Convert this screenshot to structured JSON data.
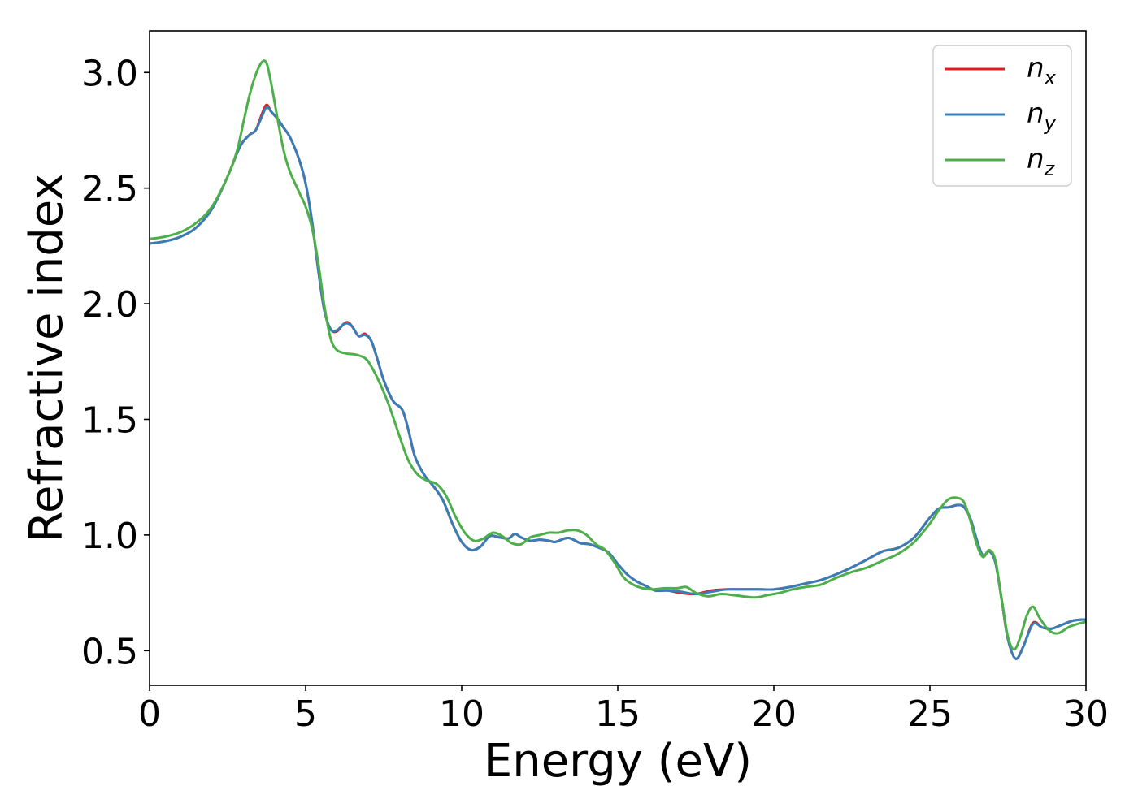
{
  "chart_data": {
    "type": "line",
    "xlabel": "Energy (eV)",
    "ylabel": "Refractive index",
    "xlim": [
      0,
      30
    ],
    "ylim": [
      0.35,
      3.18
    ],
    "x_ticks": [
      0,
      5,
      10,
      15,
      20,
      25,
      30
    ],
    "x_tick_labels": [
      "0",
      "5",
      "10",
      "15",
      "20",
      "25",
      "30"
    ],
    "y_ticks": [
      0.5,
      1.0,
      1.5,
      2.0,
      2.5,
      3.0
    ],
    "y_tick_labels": [
      "0.5",
      "1.0",
      "1.5",
      "2.0",
      "2.5",
      "3.0"
    ],
    "grid": false,
    "legend_position": "top-right",
    "series": [
      {
        "name": "n",
        "subscript": "x",
        "color": "#e41a1c",
        "points": [
          [
            0,
            2.26
          ],
          [
            0.5,
            2.27
          ],
          [
            1,
            2.29
          ],
          [
            1.5,
            2.33
          ],
          [
            2,
            2.41
          ],
          [
            2.5,
            2.55
          ],
          [
            2.9,
            2.68
          ],
          [
            3.2,
            2.73
          ],
          [
            3.4,
            2.75
          ],
          [
            3.6,
            2.82
          ],
          [
            3.75,
            2.86
          ],
          [
            3.9,
            2.83
          ],
          [
            4.1,
            2.8
          ],
          [
            4.3,
            2.76
          ],
          [
            4.5,
            2.72
          ],
          [
            4.8,
            2.62
          ],
          [
            5.0,
            2.52
          ],
          [
            5.2,
            2.36
          ],
          [
            5.4,
            2.15
          ],
          [
            5.6,
            1.97
          ],
          [
            5.8,
            1.89
          ],
          [
            6.0,
            1.88
          ],
          [
            6.2,
            1.91
          ],
          [
            6.35,
            1.92
          ],
          [
            6.5,
            1.9
          ],
          [
            6.7,
            1.86
          ],
          [
            6.9,
            1.87
          ],
          [
            7.1,
            1.84
          ],
          [
            7.3,
            1.76
          ],
          [
            7.5,
            1.67
          ],
          [
            7.8,
            1.58
          ],
          [
            8.1,
            1.54
          ],
          [
            8.3,
            1.45
          ],
          [
            8.5,
            1.34
          ],
          [
            8.8,
            1.26
          ],
          [
            9.1,
            1.21
          ],
          [
            9.4,
            1.15
          ],
          [
            9.7,
            1.05
          ],
          [
            10.0,
            0.97
          ],
          [
            10.3,
            0.935
          ],
          [
            10.6,
            0.95
          ],
          [
            10.9,
            0.995
          ],
          [
            11.2,
            0.99
          ],
          [
            11.5,
            0.985
          ],
          [
            11.7,
            1.005
          ],
          [
            11.9,
            0.99
          ],
          [
            12.2,
            0.975
          ],
          [
            12.5,
            0.98
          ],
          [
            12.8,
            0.975
          ],
          [
            13.0,
            0.97
          ],
          [
            13.3,
            0.985
          ],
          [
            13.5,
            0.985
          ],
          [
            13.8,
            0.965
          ],
          [
            14.1,
            0.96
          ],
          [
            14.4,
            0.945
          ],
          [
            14.7,
            0.925
          ],
          [
            15.0,
            0.875
          ],
          [
            15.3,
            0.83
          ],
          [
            15.6,
            0.8
          ],
          [
            15.9,
            0.78
          ],
          [
            16.2,
            0.76
          ],
          [
            16.6,
            0.76
          ],
          [
            17.0,
            0.75
          ],
          [
            17.5,
            0.745
          ],
          [
            18.0,
            0.76
          ],
          [
            18.5,
            0.765
          ],
          [
            19.0,
            0.765
          ],
          [
            19.5,
            0.765
          ],
          [
            20.0,
            0.765
          ],
          [
            20.5,
            0.775
          ],
          [
            21.0,
            0.79
          ],
          [
            21.5,
            0.805
          ],
          [
            22.0,
            0.83
          ],
          [
            22.5,
            0.86
          ],
          [
            23.0,
            0.895
          ],
          [
            23.5,
            0.93
          ],
          [
            24.0,
            0.945
          ],
          [
            24.5,
            0.99
          ],
          [
            25.0,
            1.075
          ],
          [
            25.3,
            1.115
          ],
          [
            25.6,
            1.12
          ],
          [
            25.9,
            1.13
          ],
          [
            26.1,
            1.12
          ],
          [
            26.3,
            1.07
          ],
          [
            26.5,
            0.98
          ],
          [
            26.7,
            0.91
          ],
          [
            26.9,
            0.93
          ],
          [
            27.1,
            0.88
          ],
          [
            27.3,
            0.72
          ],
          [
            27.5,
            0.55
          ],
          [
            27.75,
            0.465
          ],
          [
            28.0,
            0.52
          ],
          [
            28.3,
            0.62
          ],
          [
            28.6,
            0.6
          ],
          [
            28.9,
            0.595
          ],
          [
            29.2,
            0.61
          ],
          [
            29.6,
            0.63
          ],
          [
            30.0,
            0.635
          ]
        ]
      },
      {
        "name": "n",
        "subscript": "y",
        "color": "#377eb8",
        "points": [
          [
            0,
            2.26
          ],
          [
            0.5,
            2.27
          ],
          [
            1,
            2.29
          ],
          [
            1.5,
            2.33
          ],
          [
            2,
            2.41
          ],
          [
            2.5,
            2.55
          ],
          [
            2.9,
            2.68
          ],
          [
            3.2,
            2.73
          ],
          [
            3.4,
            2.75
          ],
          [
            3.6,
            2.81
          ],
          [
            3.75,
            2.85
          ],
          [
            3.9,
            2.83
          ],
          [
            4.1,
            2.8
          ],
          [
            4.3,
            2.76
          ],
          [
            4.5,
            2.72
          ],
          [
            4.8,
            2.62
          ],
          [
            5.0,
            2.52
          ],
          [
            5.2,
            2.36
          ],
          [
            5.4,
            2.15
          ],
          [
            5.6,
            1.97
          ],
          [
            5.8,
            1.89
          ],
          [
            6.0,
            1.885
          ],
          [
            6.2,
            1.91
          ],
          [
            6.35,
            1.915
          ],
          [
            6.5,
            1.9
          ],
          [
            6.7,
            1.86
          ],
          [
            6.9,
            1.865
          ],
          [
            7.1,
            1.84
          ],
          [
            7.3,
            1.76
          ],
          [
            7.5,
            1.67
          ],
          [
            7.8,
            1.58
          ],
          [
            8.1,
            1.54
          ],
          [
            8.3,
            1.45
          ],
          [
            8.5,
            1.34
          ],
          [
            8.8,
            1.26
          ],
          [
            9.1,
            1.21
          ],
          [
            9.4,
            1.15
          ],
          [
            9.7,
            1.05
          ],
          [
            10.0,
            0.97
          ],
          [
            10.3,
            0.935
          ],
          [
            10.6,
            0.95
          ],
          [
            10.9,
            0.995
          ],
          [
            11.2,
            0.99
          ],
          [
            11.5,
            0.985
          ],
          [
            11.7,
            1.005
          ],
          [
            11.9,
            0.99
          ],
          [
            12.2,
            0.975
          ],
          [
            12.5,
            0.98
          ],
          [
            12.8,
            0.975
          ],
          [
            13.0,
            0.97
          ],
          [
            13.3,
            0.985
          ],
          [
            13.5,
            0.985
          ],
          [
            13.8,
            0.965
          ],
          [
            14.1,
            0.96
          ],
          [
            14.4,
            0.945
          ],
          [
            14.7,
            0.925
          ],
          [
            15.0,
            0.875
          ],
          [
            15.3,
            0.83
          ],
          [
            15.6,
            0.8
          ],
          [
            15.9,
            0.78
          ],
          [
            16.2,
            0.76
          ],
          [
            16.6,
            0.76
          ],
          [
            17.0,
            0.755
          ],
          [
            17.5,
            0.745
          ],
          [
            18.0,
            0.755
          ],
          [
            18.5,
            0.765
          ],
          [
            19.0,
            0.765
          ],
          [
            19.5,
            0.765
          ],
          [
            20.0,
            0.765
          ],
          [
            20.5,
            0.775
          ],
          [
            21.0,
            0.79
          ],
          [
            21.5,
            0.805
          ],
          [
            22.0,
            0.83
          ],
          [
            22.5,
            0.86
          ],
          [
            23.0,
            0.895
          ],
          [
            23.5,
            0.93
          ],
          [
            24.0,
            0.945
          ],
          [
            24.5,
            0.99
          ],
          [
            25.0,
            1.075
          ],
          [
            25.3,
            1.115
          ],
          [
            25.6,
            1.12
          ],
          [
            25.9,
            1.13
          ],
          [
            26.1,
            1.12
          ],
          [
            26.3,
            1.07
          ],
          [
            26.5,
            0.98
          ],
          [
            26.7,
            0.91
          ],
          [
            26.9,
            0.93
          ],
          [
            27.1,
            0.88
          ],
          [
            27.3,
            0.72
          ],
          [
            27.5,
            0.55
          ],
          [
            27.75,
            0.465
          ],
          [
            28.0,
            0.52
          ],
          [
            28.3,
            0.615
          ],
          [
            28.6,
            0.6
          ],
          [
            28.9,
            0.595
          ],
          [
            29.2,
            0.61
          ],
          [
            29.6,
            0.63
          ],
          [
            30.0,
            0.635
          ]
        ]
      },
      {
        "name": "n",
        "subscript": "z",
        "color": "#4daf4a",
        "points": [
          [
            0,
            2.28
          ],
          [
            0.5,
            2.29
          ],
          [
            1,
            2.31
          ],
          [
            1.5,
            2.35
          ],
          [
            2,
            2.42
          ],
          [
            2.5,
            2.55
          ],
          [
            2.8,
            2.66
          ],
          [
            3.0,
            2.78
          ],
          [
            3.2,
            2.9
          ],
          [
            3.4,
            2.99
          ],
          [
            3.6,
            3.045
          ],
          [
            3.75,
            3.04
          ],
          [
            3.9,
            2.95
          ],
          [
            4.1,
            2.8
          ],
          [
            4.3,
            2.66
          ],
          [
            4.5,
            2.57
          ],
          [
            4.8,
            2.48
          ],
          [
            5.0,
            2.42
          ],
          [
            5.2,
            2.33
          ],
          [
            5.4,
            2.18
          ],
          [
            5.6,
            1.99
          ],
          [
            5.8,
            1.85
          ],
          [
            6.0,
            1.8
          ],
          [
            6.3,
            1.785
          ],
          [
            6.6,
            1.78
          ],
          [
            6.9,
            1.765
          ],
          [
            7.1,
            1.73
          ],
          [
            7.4,
            1.65
          ],
          [
            7.7,
            1.55
          ],
          [
            8.0,
            1.43
          ],
          [
            8.3,
            1.32
          ],
          [
            8.6,
            1.26
          ],
          [
            8.9,
            1.235
          ],
          [
            9.2,
            1.22
          ],
          [
            9.5,
            1.17
          ],
          [
            9.8,
            1.08
          ],
          [
            10.1,
            1.01
          ],
          [
            10.4,
            0.975
          ],
          [
            10.7,
            0.985
          ],
          [
            11.0,
            1.01
          ],
          [
            11.3,
            0.995
          ],
          [
            11.6,
            0.965
          ],
          [
            11.9,
            0.96
          ],
          [
            12.2,
            0.99
          ],
          [
            12.5,
            1.0
          ],
          [
            12.8,
            1.01
          ],
          [
            13.1,
            1.01
          ],
          [
            13.4,
            1.02
          ],
          [
            13.7,
            1.02
          ],
          [
            14.0,
            1.0
          ],
          [
            14.3,
            0.96
          ],
          [
            14.6,
            0.935
          ],
          [
            14.9,
            0.88
          ],
          [
            15.2,
            0.815
          ],
          [
            15.5,
            0.785
          ],
          [
            15.8,
            0.77
          ],
          [
            16.1,
            0.765
          ],
          [
            16.5,
            0.77
          ],
          [
            16.9,
            0.77
          ],
          [
            17.2,
            0.775
          ],
          [
            17.5,
            0.75
          ],
          [
            17.9,
            0.735
          ],
          [
            18.3,
            0.745
          ],
          [
            18.7,
            0.74
          ],
          [
            19.0,
            0.735
          ],
          [
            19.4,
            0.73
          ],
          [
            19.8,
            0.74
          ],
          [
            20.2,
            0.75
          ],
          [
            20.6,
            0.765
          ],
          [
            21.0,
            0.775
          ],
          [
            21.5,
            0.785
          ],
          [
            22.0,
            0.815
          ],
          [
            22.5,
            0.84
          ],
          [
            23.0,
            0.86
          ],
          [
            23.5,
            0.89
          ],
          [
            24.0,
            0.92
          ],
          [
            24.5,
            0.97
          ],
          [
            25.0,
            1.05
          ],
          [
            25.3,
            1.11
          ],
          [
            25.6,
            1.155
          ],
          [
            25.9,
            1.16
          ],
          [
            26.1,
            1.14
          ],
          [
            26.3,
            1.06
          ],
          [
            26.5,
            0.96
          ],
          [
            26.7,
            0.905
          ],
          [
            26.9,
            0.935
          ],
          [
            27.1,
            0.89
          ],
          [
            27.3,
            0.72
          ],
          [
            27.5,
            0.56
          ],
          [
            27.7,
            0.505
          ],
          [
            27.9,
            0.56
          ],
          [
            28.1,
            0.65
          ],
          [
            28.3,
            0.69
          ],
          [
            28.5,
            0.645
          ],
          [
            28.8,
            0.59
          ],
          [
            29.1,
            0.575
          ],
          [
            29.5,
            0.605
          ],
          [
            30.0,
            0.625
          ]
        ]
      }
    ]
  }
}
